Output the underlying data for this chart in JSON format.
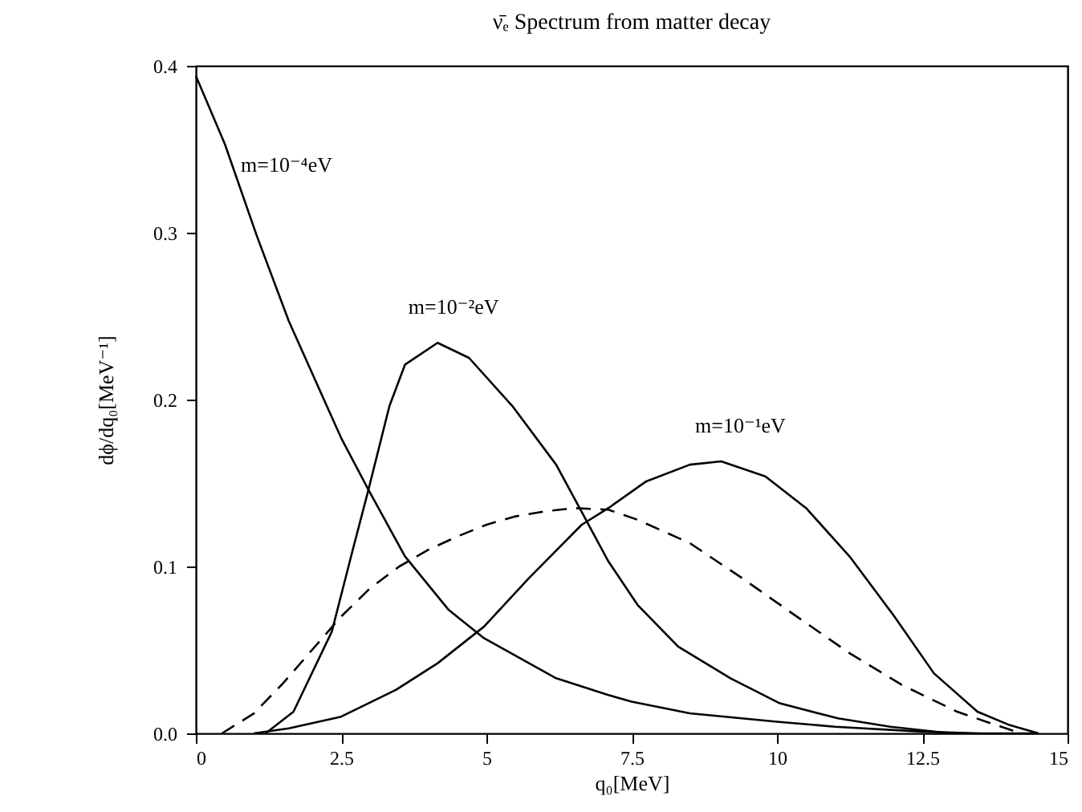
{
  "chart_data": {
    "type": "line",
    "title": "ν̄ₑ Spectrum from matter decay",
    "xlabel": "q₀[MeV]",
    "ylabel": "dϕ/dq₀[MeV⁻¹]",
    "xlim": [
      0,
      15
    ],
    "xticks": [
      0,
      2.5,
      5,
      7.5,
      10,
      12.5,
      15
    ],
    "ylim": [
      0,
      0.4
    ],
    "yticks": [
      {
        "value": 0,
        "label": "0.0"
      },
      0.1,
      0.2,
      0.3,
      0.4
    ],
    "grid": false,
    "legend": false,
    "marker": "none",
    "series": [
      {
        "name": "m=10⁻⁴eV",
        "color": "#000000",
        "line_style": "solid",
        "x": [
          0,
          0.5,
          1.05,
          1.6,
          2.5,
          2.97,
          3.6,
          4.35,
          4.96,
          6.2,
          7.1,
          7.5,
          8.5,
          10,
          11,
          12.5,
          13.5,
          14.5
        ],
        "values": [
          0.394,
          0.353,
          0.298,
          0.247,
          0.177,
          0.146,
          0.106,
          0.074,
          0.057,
          0.033,
          0.023,
          0.019,
          0.012,
          0.007,
          0.004,
          0.001,
          0,
          0
        ]
      },
      {
        "name": "m=10⁻²eV",
        "color": "#000000",
        "line_style": "solid",
        "x": [
          1.2,
          1.68,
          2.34,
          2.7,
          2.97,
          3.33,
          3.6,
          4.16,
          4.7,
          5.45,
          6.2,
          6.65,
          7.1,
          7.6,
          8.3,
          9.2,
          10.05,
          11.05,
          11.95,
          13
        ],
        "values": [
          0,
          0.013,
          0.061,
          0.11,
          0.146,
          0.196,
          0.221,
          0.234,
          0.225,
          0.196,
          0.161,
          0.132,
          0.103,
          0.077,
          0.052,
          0.033,
          0.018,
          0.009,
          0.004,
          0
        ]
      },
      {
        "name": "m=10⁻¹eV",
        "color": "#000000",
        "line_style": "solid",
        "x": [
          1,
          1.6,
          2.5,
          3.44,
          4.16,
          4.96,
          5.73,
          6.64,
          7.1,
          7.75,
          8.5,
          9.04,
          9.8,
          10.5,
          11.25,
          12,
          12.7,
          13.45,
          14,
          14.5
        ],
        "values": [
          0,
          0.003,
          0.01,
          0.026,
          0.042,
          0.064,
          0.093,
          0.125,
          0.135,
          0.151,
          0.161,
          0.163,
          0.154,
          0.135,
          0.106,
          0.071,
          0.036,
          0.013,
          0.005,
          0
        ]
      },
      {
        "color": "#000000",
        "line_style": "dashed",
        "x": [
          0.45,
          1,
          1.5,
          2,
          2.5,
          3,
          3.5,
          4,
          4.5,
          5,
          5.5,
          6,
          6.5,
          7.1,
          7.6,
          8.5,
          9.4,
          10.3,
          11.25,
          12.15,
          13.1,
          13.6,
          14.2
        ],
        "values": [
          0,
          0.012,
          0.03,
          0.05,
          0.07,
          0.087,
          0.1,
          0.11,
          0.118,
          0.125,
          0.13,
          0.133,
          0.135,
          0.134,
          0.128,
          0.114,
          0.093,
          0.071,
          0.048,
          0.029,
          0.013,
          0.007,
          0
        ]
      }
    ]
  }
}
